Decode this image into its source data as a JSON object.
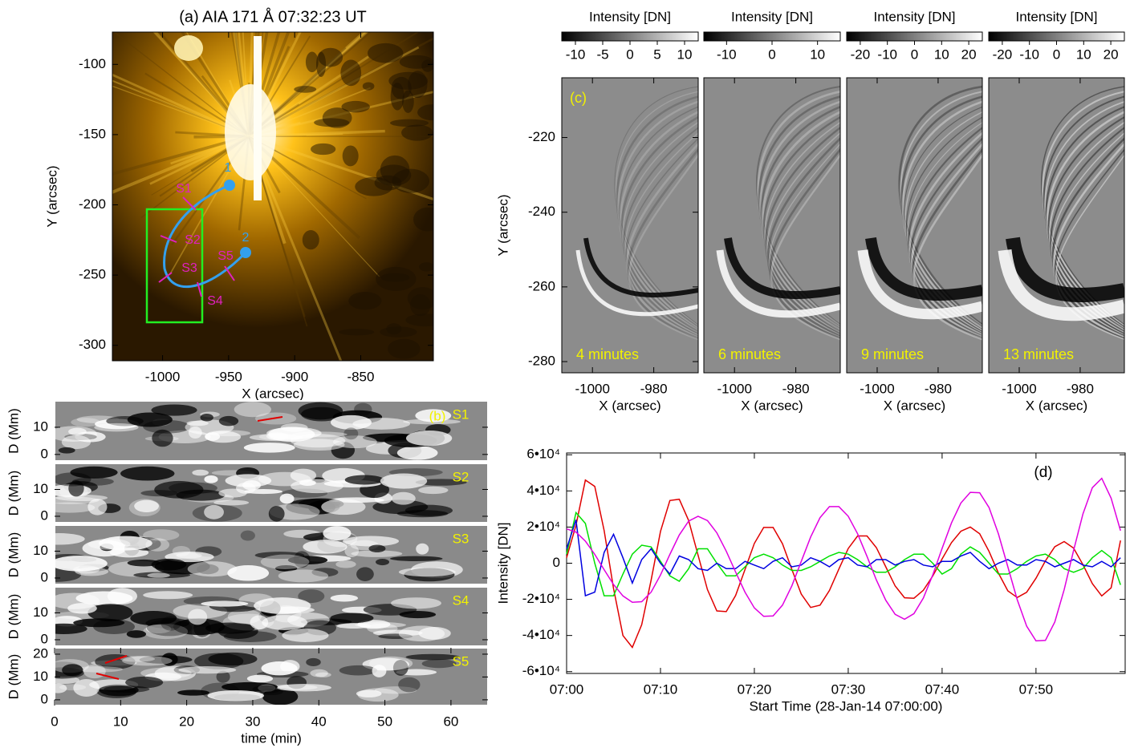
{
  "chart_data": [
    {
      "type": "image",
      "title": "(a) AIA 171 Å  07:32:23 UT",
      "xlabel": "X (arcsec)",
      "ylabel": "Y (arcsec)",
      "xlim": [
        -1038,
        -795
      ],
      "ylim": [
        -311,
        -77
      ],
      "xticks": [
        -1000,
        -950,
        -900,
        -850
      ],
      "yticks": [
        -100,
        -150,
        -200,
        -250,
        -300
      ],
      "annotations": [
        "1",
        "2",
        "S1",
        "S2",
        "S3",
        "S4",
        "S5"
      ]
    },
    {
      "type": "image",
      "title": "(c)",
      "annotation": "4 minutes",
      "xlabel": "X (arcsec)",
      "ylabel": "Y (arcsec)",
      "xlim": [
        -1010,
        -965.5
      ],
      "ylim": [
        -283,
        -204
      ],
      "xticks": [
        -1000,
        -980
      ],
      "yticks": [
        -220,
        -240,
        -260,
        -280
      ],
      "colorbar": {
        "label": "Intensity [DN]",
        "lim": [
          -12.5,
          12.5
        ],
        "ticks": [
          -10,
          -5,
          0,
          5,
          10
        ]
      }
    },
    {
      "type": "image",
      "annotation": "6 minutes",
      "xlabel": "X (arcsec)",
      "xlim": [
        -1010,
        -965.5
      ],
      "ylim": [
        -283,
        -204
      ],
      "xticks": [
        -1000,
        -980
      ],
      "colorbar": {
        "label": "Intensity [DN]",
        "lim": [
          -15,
          15
        ],
        "ticks": [
          -10,
          0,
          10
        ]
      }
    },
    {
      "type": "image",
      "annotation": "9 minutes",
      "xlabel": "X (arcsec)",
      "xlim": [
        -1010,
        -965.5
      ],
      "ylim": [
        -283,
        -204
      ],
      "xticks": [
        -1000,
        -980
      ],
      "colorbar": {
        "label": "Intensity [DN]",
        "lim": [
          -25,
          25
        ],
        "ticks": [
          -20,
          -10,
          0,
          10,
          20
        ]
      }
    },
    {
      "type": "image",
      "annotation": "13 minutes",
      "xlabel": "X (arcsec)",
      "xlim": [
        -1010,
        -965.5
      ],
      "ylim": [
        -283,
        -204
      ],
      "xticks": [
        -1000,
        -980
      ],
      "colorbar": {
        "label": "Intensity [DN]",
        "lim": [
          -25,
          25
        ],
        "ticks": [
          -20,
          -10,
          0,
          10,
          20
        ]
      }
    },
    {
      "type": "image",
      "title": "(b)",
      "annotation": "S1",
      "ylabel": "D (Mm)",
      "xlim": [
        0,
        65.6
      ],
      "ylim": [
        -2.4,
        19.7
      ],
      "yticks": [
        0,
        10
      ]
    },
    {
      "type": "image",
      "annotation": "S2",
      "ylabel": "D (Mm)",
      "xlim": [
        0,
        65.6
      ],
      "ylim": [
        -2.4,
        19.7
      ],
      "yticks": [
        0,
        10
      ]
    },
    {
      "type": "image",
      "annotation": "S3",
      "ylabel": "D (Mm)",
      "xlim": [
        0,
        65.6
      ],
      "ylim": [
        -2.4,
        19.7
      ],
      "yticks": [
        0,
        10
      ]
    },
    {
      "type": "image",
      "annotation": "S4",
      "ylabel": "D (Mm)",
      "xlim": [
        0,
        65.6
      ],
      "ylim": [
        -2.4,
        19.7
      ],
      "yticks": [
        0,
        10
      ]
    },
    {
      "type": "image",
      "annotation": "S5",
      "ylabel": "D (Mm)",
      "xlabel": "time (min)",
      "xlim": [
        0,
        65.6
      ],
      "ylim": [
        -2.5,
        22.8
      ],
      "yticks": [
        0,
        10,
        20
      ],
      "xticks": [
        0,
        10,
        20,
        30,
        40,
        50,
        60
      ]
    },
    {
      "type": "line",
      "annotation": "(d)",
      "xlabel": "Start Time (28-Jan-14 07:00:00)",
      "ylabel": "Intensity [DN]",
      "xlim": [
        0,
        59.5
      ],
      "ylim": [
        -61000,
        61000
      ],
      "xticks": [
        {
          "value": 0,
          "label": "07:00"
        },
        {
          "value": 10,
          "label": "07:10"
        },
        {
          "value": 20,
          "label": "07:20"
        },
        {
          "value": 30,
          "label": "07:30"
        },
        {
          "value": 40,
          "label": "07:40"
        },
        {
          "value": 50,
          "label": "07:50"
        }
      ],
      "yticks": [
        {
          "value": 60000,
          "label": "6•10⁴"
        },
        {
          "value": 40000,
          "label": "4•10⁴"
        },
        {
          "value": 20000,
          "label": "2•10⁴"
        },
        0,
        {
          "value": -20000,
          "label": "-2•10⁴"
        },
        {
          "value": -40000,
          "label": "-4•10⁴"
        },
        {
          "value": -60000,
          "label": "-6•10⁴"
        }
      ],
      "x": [
        0,
        1,
        2,
        3,
        4,
        5,
        6,
        7,
        8,
        9,
        10,
        11,
        12,
        13,
        14,
        15,
        16,
        17,
        18,
        19,
        20,
        21,
        22,
        23,
        24,
        25,
        26,
        27,
        28,
        29,
        30,
        31,
        32,
        33,
        34,
        35,
        36,
        37,
        38,
        39,
        40,
        41,
        42,
        43,
        44,
        45,
        46,
        47,
        48,
        49,
        50,
        51,
        52,
        53,
        54,
        55,
        56,
        57,
        58,
        59
      ],
      "series": [
        {
          "color": "#e00000",
          "values": [
            3000,
            21000,
            46000,
            42500,
            18000,
            -14000,
            -40000,
            -46600,
            -34000,
            -9400,
            17600,
            34700,
            35400,
            23600,
            4500,
            -14600,
            -26400,
            -26800,
            -17900,
            -3500,
            10900,
            19800,
            19800,
            10800,
            -3500,
            -17100,
            -24500,
            -23200,
            -15100,
            -3300,
            8100,
            15100,
            15100,
            8600,
            -2000,
            -12600,
            -19100,
            -19400,
            -15000,
            -7100,
            2400,
            11400,
            17700,
            20000,
            16300,
            6500,
            -5500,
            -15300,
            -19000,
            -16100,
            -8300,
            1300,
            9100,
            12000,
            8400,
            -800,
            -11300,
            -18100,
            -13600,
            12600
          ]
        },
        {
          "color": "#00e000",
          "values": [
            5000,
            28000,
            22000,
            0,
            -18000,
            -18000,
            -6000,
            5000,
            10000,
            9000,
            1000,
            -7000,
            -10000,
            -3000,
            8000,
            8000,
            0,
            -7000,
            -7000,
            -2000,
            3000,
            5000,
            3000,
            -1000,
            -4000,
            -4000,
            -2000,
            1000,
            4000,
            6000,
            5000,
            2000,
            -2000,
            -5000,
            -5000,
            -2000,
            2000,
            5000,
            5000,
            0,
            -6000,
            -3000,
            5000,
            9000,
            6000,
            0,
            -6000,
            -6000,
            -3000,
            1000,
            4000,
            5000,
            2000,
            -3000,
            -5000,
            -3000,
            3000,
            7000,
            3000,
            -12000
          ]
        },
        {
          "color": "#0000e0",
          "values": [
            8000,
            24000,
            -18000,
            -16000,
            6000,
            16000,
            3000,
            -11000,
            2000,
            8000,
            0,
            -6000,
            4000,
            2000,
            -3000,
            -4000,
            0,
            -3000,
            -3000,
            1000,
            -1000,
            -3000,
            1000,
            3000,
            -2000,
            -1000,
            3000,
            1000,
            -2000,
            2000,
            3000,
            -1000,
            -2000,
            2000,
            2000,
            -1000,
            1000,
            2000,
            -1000,
            -2000,
            1000,
            1000,
            4000,
            6000,
            1000,
            -3000,
            0,
            2000,
            -1000,
            -1000,
            2000,
            1000,
            -2000,
            0,
            2000,
            -1000,
            -2000,
            1000,
            -2000,
            3000
          ]
        },
        {
          "color": "#e000e0",
          "values": [
            19000,
            17200,
            12200,
            4900,
            -3600,
            -11800,
            -18100,
            -21600,
            -21300,
            -16000,
            -6500,
            4900,
            15600,
            23300,
            26000,
            23600,
            16800,
            6700,
            -4900,
            -16000,
            -24700,
            -29400,
            -29200,
            -23200,
            -12500,
            1000,
            14500,
            25200,
            31300,
            31300,
            26000,
            16300,
            3800,
            -9300,
            -20500,
            -28300,
            -31000,
            -27900,
            -19300,
            -6500,
            8200,
            22300,
            33300,
            39200,
            39000,
            30800,
            16200,
            -2000,
            -20200,
            -34800,
            -43000,
            -42700,
            -32500,
            -14600,
            7000,
            27300,
            41800,
            47000,
            36000,
            18000
          ]
        }
      ]
    }
  ]
}
